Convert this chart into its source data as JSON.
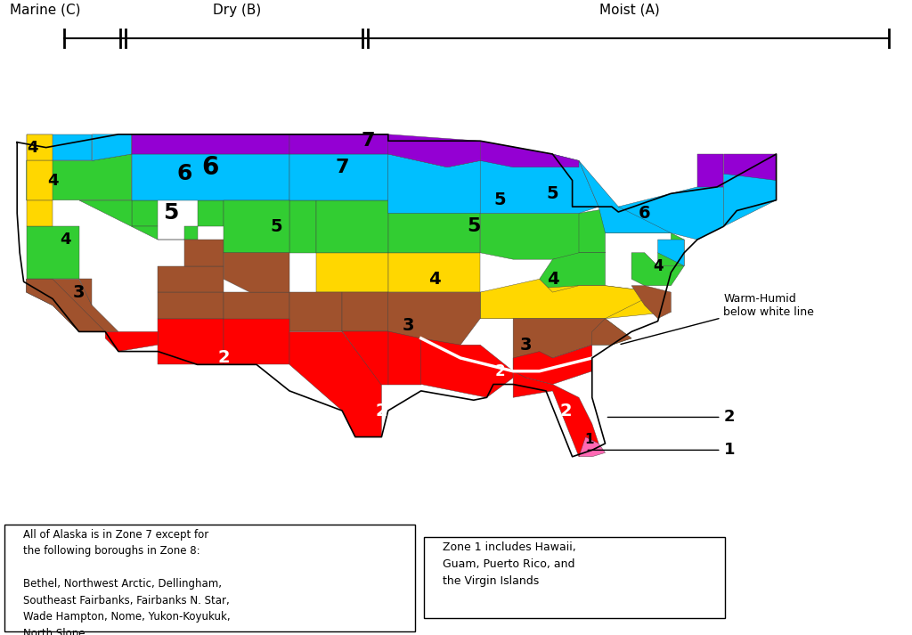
{
  "title_marine": "Marine (C)",
  "title_dry": "Dry (B)",
  "title_moist": "Moist (A)",
  "zone_colors": {
    "1": "#FF69B4",
    "2": "#FF0000",
    "3": "#A0522D",
    "4": "#FFD700",
    "5": "#32CD32",
    "6": "#00BFFF",
    "7": "#9400D3"
  },
  "background_color": "#FFFFFF",
  "annotation_warm_humid": "Warm-Humid\nbelow white line",
  "alaska_text": "All of Alaska is in Zone 7 except for\nthe following boroughs in Zone 8:\n\nBethel, Northwest Arctic, Dellingham,\nSoutheast Fairbanks, Fairbanks N. Star,\nWade Hampton, Nome, Yukon-Koyukuk,\nNorth Slope",
  "zone1_text": "Zone 1 includes Hawaii,\nGuam, Puerto Rico, and\nthe Virgin Islands"
}
